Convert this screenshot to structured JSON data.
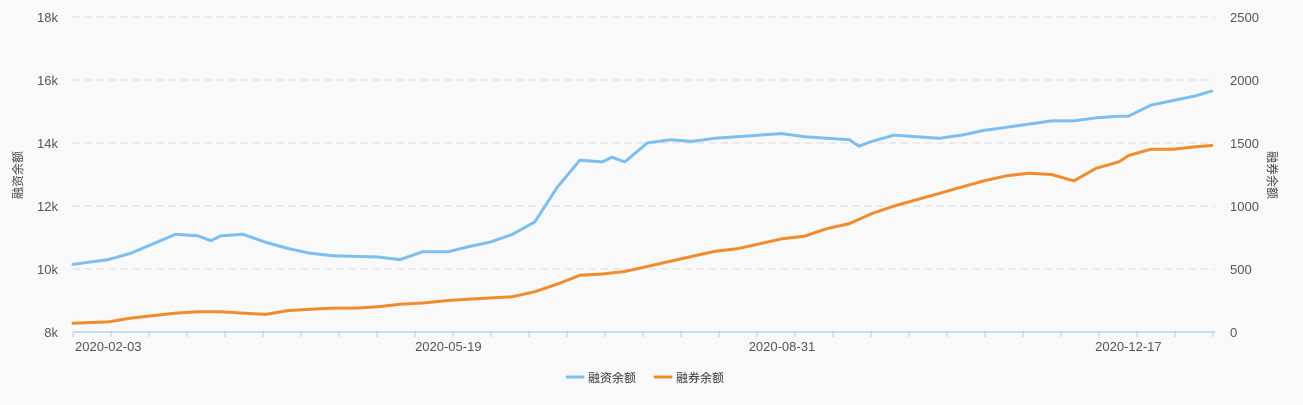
{
  "chart_data": {
    "type": "line",
    "x_ticks": [
      "2020-02-03",
      "2020-05-19",
      "2020-08-31",
      "2020-12-17"
    ],
    "y_left": {
      "label": "融资余额",
      "ticks": [
        "8k",
        "10k",
        "12k",
        "14k",
        "16k",
        "18k"
      ],
      "range": [
        8000,
        18000
      ]
    },
    "y_right": {
      "label": "融券余额",
      "ticks": [
        "0",
        "500",
        "1000",
        "1500",
        "2000",
        "2500"
      ],
      "range": [
        0,
        2500
      ]
    },
    "grid": true,
    "legend_position": "bottom-center",
    "series": [
      {
        "name": "融资余额",
        "axis": "left",
        "color": "#7cbfee",
        "x": [
          "2020-01-23",
          "2020-02-03",
          "2020-02-10",
          "2020-02-17",
          "2020-02-24",
          "2020-03-02",
          "2020-03-06",
          "2020-03-09",
          "2020-03-16",
          "2020-03-23",
          "2020-03-30",
          "2020-04-06",
          "2020-04-13",
          "2020-04-20",
          "2020-04-27",
          "2020-05-04",
          "2020-05-11",
          "2020-05-19",
          "2020-05-25",
          "2020-06-01",
          "2020-06-08",
          "2020-06-15",
          "2020-06-22",
          "2020-06-29",
          "2020-07-06",
          "2020-07-09",
          "2020-07-13",
          "2020-07-20",
          "2020-07-27",
          "2020-08-03",
          "2020-08-10",
          "2020-08-17",
          "2020-08-24",
          "2020-08-31",
          "2020-09-07",
          "2020-09-14",
          "2020-09-21",
          "2020-09-24",
          "2020-09-28",
          "2020-10-05",
          "2020-10-12",
          "2020-10-19",
          "2020-10-26",
          "2020-11-02",
          "2020-11-09",
          "2020-11-16",
          "2020-11-23",
          "2020-11-30",
          "2020-12-07",
          "2020-12-14",
          "2020-12-17",
          "2020-12-24",
          "2020-12-31",
          "2021-01-07",
          "2021-01-12"
        ],
        "values": [
          10150,
          10300,
          10500,
          10800,
          11100,
          11050,
          10900,
          11050,
          11100,
          10850,
          10650,
          10500,
          10420,
          10400,
          10380,
          10300,
          10550,
          10550,
          10700,
          10850,
          11100,
          11500,
          12600,
          13450,
          13400,
          13550,
          13400,
          14000,
          14100,
          14050,
          14150,
          14200,
          14250,
          14300,
          14200,
          14150,
          14100,
          13900,
          14050,
          14250,
          14200,
          14150,
          14250,
          14400,
          14500,
          14600,
          14700,
          14700,
          14800,
          14850,
          14850,
          15200,
          15350,
          15500,
          15650
        ]
      },
      {
        "name": "融券余额",
        "axis": "right",
        "color": "#f08c2e",
        "x": [
          "2020-01-23",
          "2020-02-03",
          "2020-02-10",
          "2020-02-17",
          "2020-02-24",
          "2020-03-02",
          "2020-03-09",
          "2020-03-16",
          "2020-03-23",
          "2020-03-30",
          "2020-04-06",
          "2020-04-13",
          "2020-04-20",
          "2020-04-27",
          "2020-05-04",
          "2020-05-11",
          "2020-05-19",
          "2020-05-25",
          "2020-06-01",
          "2020-06-08",
          "2020-06-15",
          "2020-06-22",
          "2020-06-29",
          "2020-07-06",
          "2020-07-13",
          "2020-07-20",
          "2020-07-27",
          "2020-08-03",
          "2020-08-10",
          "2020-08-17",
          "2020-08-24",
          "2020-08-31",
          "2020-09-07",
          "2020-09-14",
          "2020-09-21",
          "2020-09-28",
          "2020-10-05",
          "2020-10-12",
          "2020-10-19",
          "2020-10-26",
          "2020-11-02",
          "2020-11-09",
          "2020-11-16",
          "2020-11-23",
          "2020-11-30",
          "2020-12-07",
          "2020-12-14",
          "2020-12-17",
          "2020-12-24",
          "2020-12-31",
          "2021-01-07",
          "2021-01-12"
        ],
        "values": [
          70,
          80,
          110,
          130,
          150,
          160,
          160,
          150,
          140,
          170,
          180,
          190,
          190,
          200,
          220,
          230,
          250,
          260,
          270,
          280,
          320,
          380,
          450,
          460,
          480,
          520,
          560,
          600,
          640,
          660,
          700,
          740,
          760,
          820,
          860,
          940,
          1000,
          1050,
          1100,
          1150,
          1200,
          1240,
          1260,
          1250,
          1200,
          1300,
          1350,
          1400,
          1450,
          1450,
          1470,
          1480
        ]
      }
    ]
  }
}
